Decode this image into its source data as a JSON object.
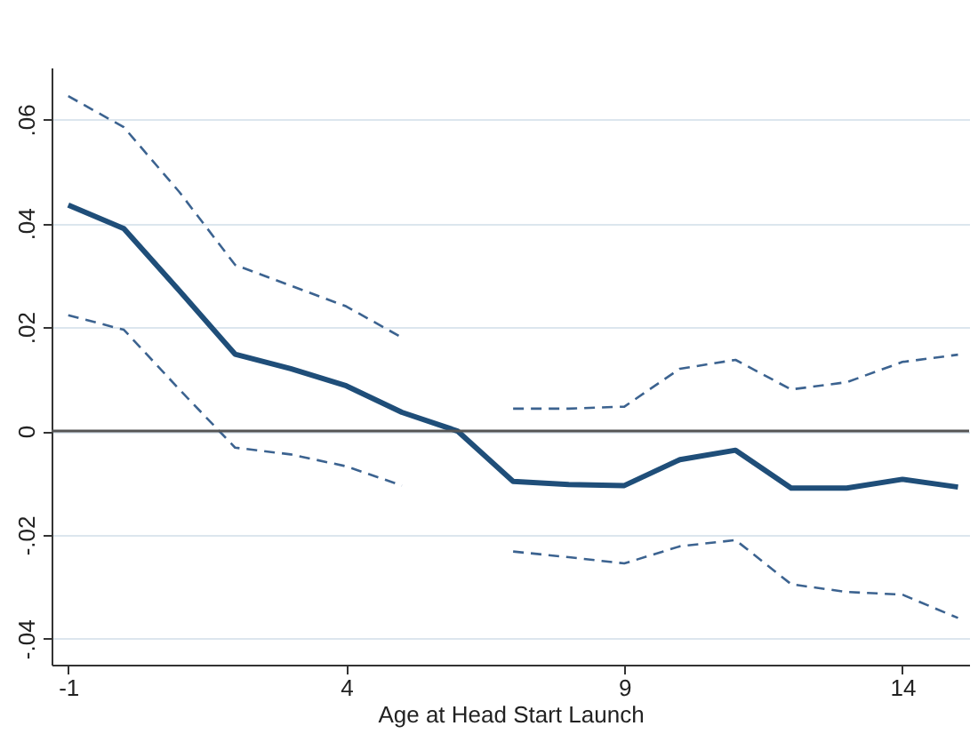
{
  "chart_data": {
    "type": "line",
    "xlabel": "Age at Head Start Launch",
    "x": [
      -1,
      0,
      1,
      2,
      3,
      4,
      5,
      6,
      7,
      8,
      9,
      10,
      11,
      12,
      13,
      14,
      15
    ],
    "series": [
      {
        "color": "#1f4e79",
        "line_style": "solid",
        "values": [
          0.0435,
          0.039,
          0.027,
          0.0148,
          0.012,
          0.0087,
          0.0036,
          0.0,
          -0.0097,
          -0.0103,
          -0.0105,
          -0.0055,
          -0.0037,
          -0.011,
          -0.011,
          -0.0093,
          -0.0108
        ]
      },
      {
        "color": "#3c6390",
        "line_style": "dashed",
        "values": [
          0.0645,
          0.0585,
          0.046,
          0.032,
          0.028,
          0.024,
          0.018,
          null,
          0.0043,
          0.0043,
          0.0047,
          0.012,
          0.0137,
          0.008,
          0.0094,
          0.0133,
          0.0147
        ]
      },
      {
        "color": "#3c6390",
        "line_style": "dashed",
        "values": [
          0.0223,
          0.0195,
          0.008,
          -0.0032,
          -0.0045,
          -0.0068,
          -0.0105,
          null,
          -0.0232,
          -0.0243,
          -0.0255,
          -0.0222,
          -0.021,
          -0.0295,
          -0.031,
          -0.0315,
          -0.036
        ]
      }
    ],
    "xlim": [
      -1.3,
      15.2
    ],
    "xticks": [
      -1,
      4,
      9,
      14
    ],
    "ylim": [
      -0.045,
      0.07
    ],
    "yticks": [
      {
        "value": -0.04,
        "label": "-.04"
      },
      {
        "value": -0.02,
        "label": "-.02"
      },
      0,
      {
        "value": 0.02,
        "label": ".02"
      },
      {
        "value": 0.04,
        "label": ".04"
      },
      {
        "value": 0.06,
        "label": ".06"
      }
    ],
    "ref_lines": [
      {
        "axis": "y",
        "value": 0,
        "color": "#555555",
        "line_style": "solid"
      }
    ],
    "grid": "y"
  }
}
